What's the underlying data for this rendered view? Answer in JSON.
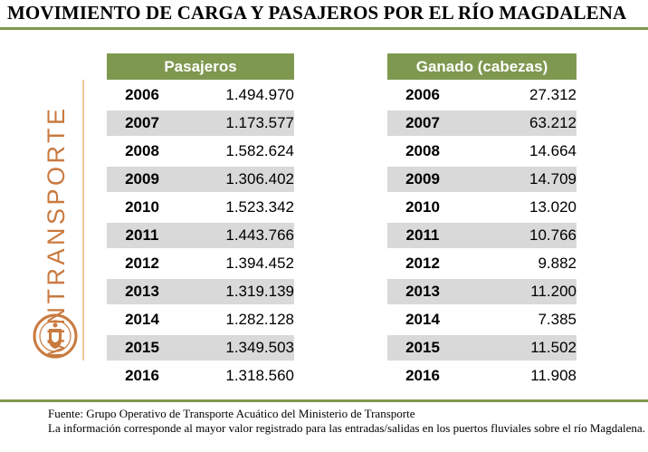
{
  "title": "MOVIMIENTO DE CARGA Y PASAJEROS POR EL RÍO MAGDALENA",
  "brand": "MINTRANSPORTE",
  "pasajeros": {
    "header": "Pasajeros",
    "rows": [
      {
        "year": "2006",
        "value": "1.494.970"
      },
      {
        "year": "2007",
        "value": "1.173.577"
      },
      {
        "year": "2008",
        "value": "1.582.624"
      },
      {
        "year": "2009",
        "value": "1.306.402"
      },
      {
        "year": "2010",
        "value": "1.523.342"
      },
      {
        "year": "2011",
        "value": "1.443.766"
      },
      {
        "year": "2012",
        "value": "1.394.452"
      },
      {
        "year": "2013",
        "value": "1.319.139"
      },
      {
        "year": "2014",
        "value": "1.282.128"
      },
      {
        "year": "2015",
        "value": "1.349.503"
      },
      {
        "year": "2016",
        "value": "1.318.560"
      }
    ]
  },
  "ganado": {
    "header": "Ganado (cabezas)",
    "rows": [
      {
        "year": "2006",
        "value": "27.312"
      },
      {
        "year": "2007",
        "value": "63.212"
      },
      {
        "year": "2008",
        "value": "14.664"
      },
      {
        "year": "2009",
        "value": "14.709"
      },
      {
        "year": "2010",
        "value": "13.020"
      },
      {
        "year": "2011",
        "value": "10.766"
      },
      {
        "year": "2012",
        "value": "9.882"
      },
      {
        "year": "2013",
        "value": "11.200"
      },
      {
        "year": "2014",
        "value": "7.385"
      },
      {
        "year": "2015",
        "value": "11.502"
      },
      {
        "year": "2016",
        "value": "11.908"
      }
    ]
  },
  "footnote": {
    "source": "Fuente: Grupo Operativo de Transporte Acuático del Ministerio de Transporte",
    "note": "La información corresponde al mayor valor registrado para las entradas/salidas en los puertos fluviales sobre el río Magdalena."
  },
  "colors": {
    "accent_green": "#7f9850",
    "brand_orange": "#c97a3f",
    "row_shade": "#d9d9d9"
  }
}
